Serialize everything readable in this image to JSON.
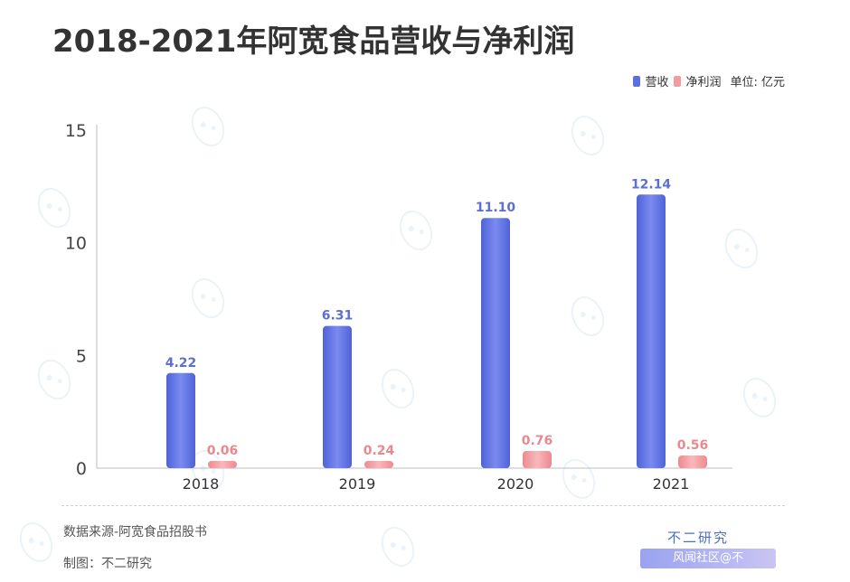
{
  "header": {
    "title": "2018-2021年阿宽食品营收与净利润"
  },
  "legend": {
    "items": [
      {
        "label": "营收",
        "color": "#5d6fdc"
      },
      {
        "label": "净利润",
        "color": "#f19ca0"
      }
    ],
    "unit": "单位: 亿元"
  },
  "footer": {
    "source": "数据来源-阿宽食品招股书",
    "maker": "制图：不二研究",
    "brand": "不二研究",
    "ribbon": "风闻社区@不"
  },
  "colors": {
    "revenue": "#5d6fdc",
    "profit": "#f19ca0",
    "revenue_label": "#5d6fd0",
    "profit_label": "#e8898e"
  },
  "chart_data": {
    "type": "bar",
    "categories": [
      "2018",
      "2019",
      "2020",
      "2021"
    ],
    "series": [
      {
        "name": "营收",
        "values": [
          4.22,
          6.31,
          11.1,
          12.14
        ],
        "labels": [
          "4.22",
          "6.31",
          "11.10",
          "12.14"
        ]
      },
      {
        "name": "净利润",
        "values": [
          0.06,
          0.24,
          0.76,
          0.56
        ],
        "labels": [
          "0.06",
          "0.24",
          "0.76",
          "0.56"
        ]
      }
    ],
    "yticks": [
      "0",
      "5",
      "10",
      "15"
    ],
    "ylim": [
      0,
      15
    ],
    "grid": false,
    "legend_position": "top-right"
  }
}
